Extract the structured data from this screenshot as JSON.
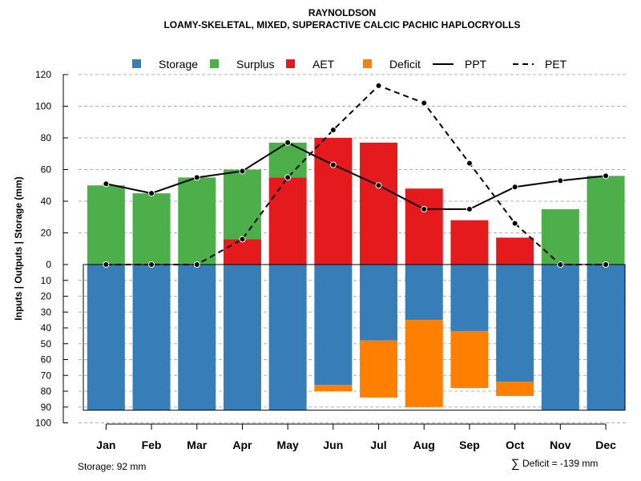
{
  "chart_data": {
    "type": "bar",
    "title": "RAYNOLDSON",
    "subtitle": "LOAMY-SKELETAL, MIXED, SUPERACTIVE CALCIC PACHIC HAPLOCRYOLLS",
    "ylabel": "Inputs | Outputs | Storage    (mm)",
    "categories": [
      "Jan",
      "Feb",
      "Mar",
      "Apr",
      "May",
      "Jun",
      "Jul",
      "Aug",
      "Sep",
      "Oct",
      "Nov",
      "Dec"
    ],
    "upper_ticks": [
      "0",
      "20",
      "40",
      "60",
      "80",
      "100",
      "120"
    ],
    "lower_ticks": [
      "10",
      "20",
      "30",
      "40",
      "50",
      "60",
      "70",
      "80",
      "90",
      "100"
    ],
    "ylim_upper": [
      0,
      120
    ],
    "ylim_lower": [
      0,
      100
    ],
    "storage_total": 92,
    "series": [
      {
        "name": "Storage",
        "color": "#377EB8",
        "values": [
          92,
          92,
          92,
          92,
          92,
          76,
          48,
          35,
          42,
          74,
          92,
          92
        ]
      },
      {
        "name": "Deficit",
        "color": "#FF7F00",
        "values": [
          0,
          0,
          0,
          0,
          0,
          4,
          36,
          55,
          36,
          9,
          0,
          0
        ]
      },
      {
        "name": "AET",
        "color": "#E41A1C",
        "values": [
          0,
          0,
          0,
          16,
          55,
          80,
          77,
          48,
          28,
          17,
          0,
          0
        ]
      },
      {
        "name": "Surplus",
        "color": "#4DAF4A",
        "values": [
          50,
          45,
          55,
          44,
          22,
          0,
          0,
          0,
          0,
          0,
          35,
          56
        ]
      },
      {
        "name": "PPT",
        "values": [
          51,
          45,
          55,
          59,
          77,
          63,
          50,
          35,
          35,
          49,
          53,
          56
        ]
      },
      {
        "name": "PET",
        "values": [
          0,
          0,
          0,
          16,
          55,
          85,
          113,
          102,
          64,
          26,
          0,
          0
        ]
      }
    ],
    "legend": [
      {
        "label": "Storage",
        "kind": "box",
        "color": "#377EB8"
      },
      {
        "label": "Surplus",
        "kind": "box",
        "color": "#4DAF4A"
      },
      {
        "label": "AET",
        "kind": "box",
        "color": "#E41A1C"
      },
      {
        "label": "Deficit",
        "kind": "box",
        "color": "#FF7F00"
      },
      {
        "label": "PPT",
        "kind": "solid-line",
        "color": "#000000"
      },
      {
        "label": "PET",
        "kind": "dashed-line",
        "color": "#000000"
      }
    ],
    "legend_position": "top"
  },
  "footer": {
    "storage_note": "Storage: 92 mm",
    "deficit_symbol": "∑",
    "deficit_note": "Deficit = -139 mm"
  }
}
